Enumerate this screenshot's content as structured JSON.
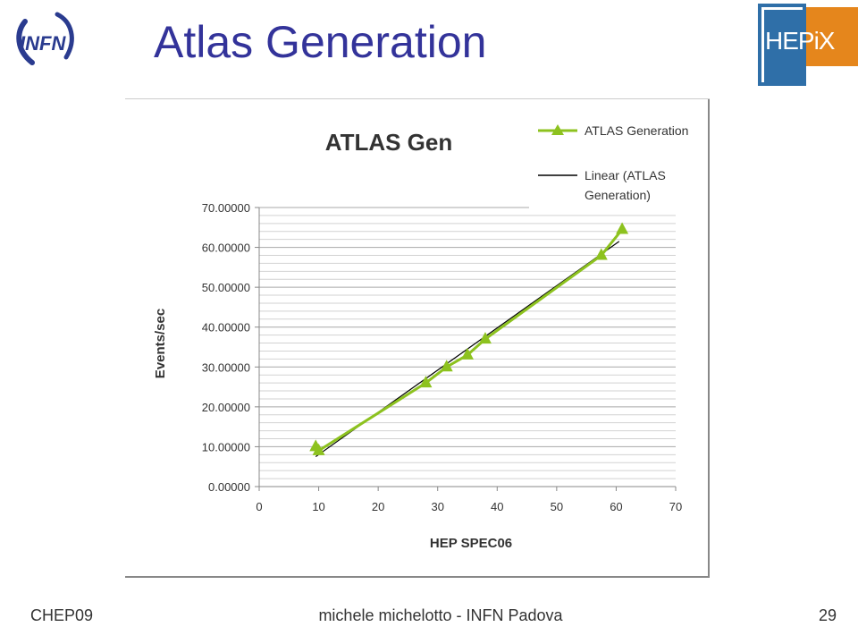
{
  "slide": {
    "title": "Atlas Generation",
    "logo_left": "INFN",
    "logo_right_a": "HEP",
    "logo_right_b": "iX"
  },
  "footer": {
    "left": "CHEP09",
    "center": "michele michelotto - INFN Padova",
    "right": "29"
  },
  "colors": {
    "title": "#33339a",
    "series": "#8dc21f",
    "trend": "#000000",
    "hepix_blue": "#2f6fa8",
    "hepix_orange": "#e5861c"
  },
  "chart_data": {
    "type": "line",
    "title": "ATLAS Gen",
    "xlabel": "HEP SPEC06",
    "ylabel": "Events/sec",
    "xlim": [
      0,
      70
    ],
    "ylim": [
      0,
      70
    ],
    "xticks": [
      "0",
      "10",
      "20",
      "30",
      "40",
      "50",
      "60",
      "70"
    ],
    "yticks": [
      "0.00000",
      "10.00000",
      "20.00000",
      "30.00000",
      "40.00000",
      "50.00000",
      "60.00000",
      "70.00000"
    ],
    "grid": true,
    "legend_position": "top-right",
    "series": [
      {
        "name": "ATLAS Generation",
        "marker": "triangle",
        "x": [
          9.5,
          10,
          28,
          31.5,
          35,
          38,
          57.5,
          61
        ],
        "y": [
          10,
          9,
          26,
          30,
          33,
          37,
          58,
          64.5
        ]
      }
    ],
    "trendline": {
      "name": "Linear (ATLAS Generation)",
      "name_lines": [
        "Linear (ATLAS",
        "Generation)"
      ],
      "x": [
        9.5,
        60.5
      ],
      "y": [
        7.5,
        61.5
      ]
    }
  }
}
